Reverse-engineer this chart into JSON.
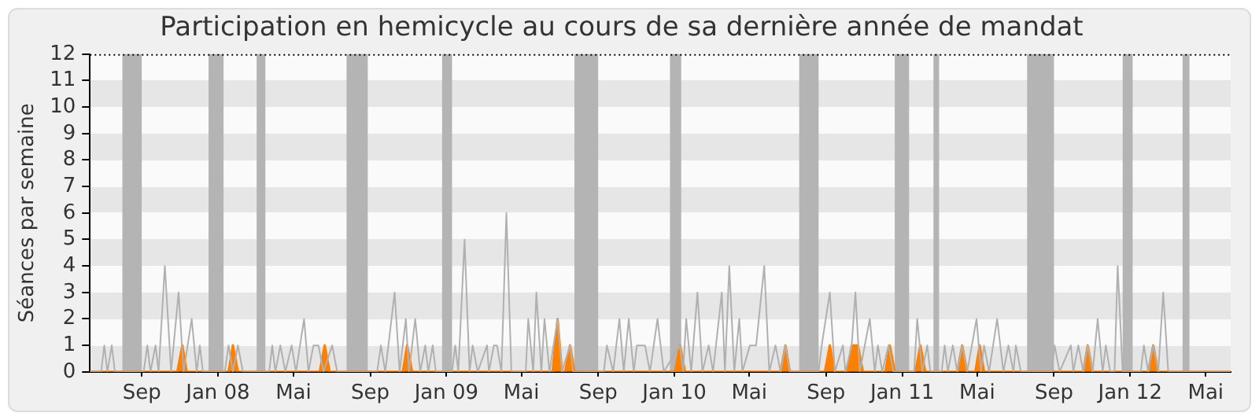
{
  "chart_data": {
    "type": "line",
    "title": "Participation en hemicycle au cours de sa dernière année de mandat",
    "ylabel": "Séances par semaine",
    "xlim": [
      "2007-06-10",
      "2012-06-10"
    ],
    "ylim": [
      0,
      12
    ],
    "yticks": [
      0,
      1,
      2,
      3,
      4,
      5,
      6,
      7,
      8,
      9,
      10,
      11,
      12
    ],
    "xticks": [
      {
        "value": "2007-09-01",
        "label": "Sep"
      },
      {
        "value": "2008-01-01",
        "label": "Jan 08"
      },
      {
        "value": "2008-05-01",
        "label": "Mai"
      },
      {
        "value": "2008-09-01",
        "label": "Sep"
      },
      {
        "value": "2009-01-01",
        "label": "Jan 09"
      },
      {
        "value": "2009-05-01",
        "label": "Mai"
      },
      {
        "value": "2009-09-01",
        "label": "Sep"
      },
      {
        "value": "2010-01-01",
        "label": "Jan 10"
      },
      {
        "value": "2010-05-01",
        "label": "Mai"
      },
      {
        "value": "2010-09-01",
        "label": "Sep"
      },
      {
        "value": "2011-01-01",
        "label": "Jan 11"
      },
      {
        "value": "2011-05-01",
        "label": "Mai"
      },
      {
        "value": "2011-09-01",
        "label": "Sep"
      },
      {
        "value": "2012-01-01",
        "label": "Jan 12"
      },
      {
        "value": "2012-05-01",
        "label": "Mai"
      }
    ],
    "legend": false,
    "marker": "none",
    "bands": [
      {
        "axis": "x",
        "from": "2007-08-01",
        "to": "2007-09-01",
        "color": "#b4b4b4"
      },
      {
        "axis": "x",
        "from": "2007-12-17",
        "to": "2008-01-10",
        "color": "#b4b4b4"
      },
      {
        "axis": "x",
        "from": "2008-03-03",
        "to": "2008-03-17",
        "color": "#b4b4b4"
      },
      {
        "axis": "x",
        "from": "2008-07-25",
        "to": "2008-08-28",
        "color": "#b4b4b4"
      },
      {
        "axis": "x",
        "from": "2008-12-25",
        "to": "2009-01-10",
        "color": "#b4b4b4"
      },
      {
        "axis": "x",
        "from": "2009-07-25",
        "to": "2009-09-01",
        "color": "#b4b4b4"
      },
      {
        "axis": "x",
        "from": "2009-12-25",
        "to": "2010-01-12",
        "color": "#b4b4b4"
      },
      {
        "axis": "x",
        "from": "2010-07-20",
        "to": "2010-08-20",
        "color": "#b4b4b4"
      },
      {
        "axis": "x",
        "from": "2010-12-20",
        "to": "2011-01-12",
        "color": "#b4b4b4"
      },
      {
        "axis": "x",
        "from": "2011-02-20",
        "to": "2011-03-01",
        "color": "#b4b4b4"
      },
      {
        "axis": "x",
        "from": "2011-07-20",
        "to": "2011-09-01",
        "color": "#b4b4b4"
      },
      {
        "axis": "x",
        "from": "2011-12-20",
        "to": "2012-01-05",
        "color": "#b4b4b4"
      },
      {
        "axis": "x",
        "from": "2012-03-25",
        "to": "2012-04-05",
        "color": "#b4b4b4"
      }
    ],
    "series": [
      {
        "color": "#b0b0b0",
        "x": [
          "2007-06-10",
          "2007-06-28",
          "2007-07-03",
          "2007-07-08",
          "2007-07-15",
          "2007-07-20",
          "2007-09-04",
          "2007-09-10",
          "2007-09-15",
          "2007-09-23",
          "2007-09-28",
          "2007-10-08",
          "2007-10-18",
          "2007-10-30",
          "2007-11-07",
          "2007-11-20",
          "2007-11-28",
          "2007-12-03",
          "2007-12-08",
          "2008-01-12",
          "2008-01-18",
          "2008-01-25",
          "2008-02-02",
          "2008-02-10",
          "2008-03-23",
          "2008-03-28",
          "2008-04-02",
          "2008-04-10",
          "2008-04-18",
          "2008-04-28",
          "2008-05-05",
          "2008-05-18",
          "2008-05-25",
          "2008-06-02",
          "2008-06-10",
          "2008-06-18",
          "2008-07-02",
          "2008-07-10",
          "2008-09-12",
          "2008-09-18",
          "2008-09-25",
          "2008-10-10",
          "2008-10-18",
          "2008-10-28",
          "2008-11-02",
          "2008-11-12",
          "2008-11-20",
          "2008-11-28",
          "2008-12-03",
          "2008-12-10",
          "2008-12-15",
          "2009-01-10",
          "2009-01-15",
          "2009-01-20",
          "2009-01-30",
          "2009-02-07",
          "2009-02-12",
          "2009-02-20",
          "2009-03-07",
          "2009-03-10",
          "2009-03-18",
          "2009-03-23",
          "2009-03-30",
          "2009-04-07",
          "2009-04-15",
          "2009-05-08",
          "2009-05-12",
          "2009-05-20",
          "2009-05-25",
          "2009-06-02",
          "2009-06-07",
          "2009-06-15",
          "2009-06-28",
          "2009-07-05",
          "2009-07-18",
          "2009-07-23",
          "2009-09-10",
          "2009-09-15",
          "2009-09-25",
          "2009-10-05",
          "2009-10-12",
          "2009-10-20",
          "2009-10-28",
          "2009-11-02",
          "2009-11-15",
          "2009-11-23",
          "2009-12-05",
          "2009-12-15",
          "2010-01-10",
          "2010-01-15",
          "2010-01-20",
          "2010-01-28",
          "2010-02-07",
          "2010-02-15",
          "2010-02-25",
          "2010-03-04",
          "2010-03-18",
          "2010-03-23",
          "2010-03-30",
          "2010-04-07",
          "2010-04-15",
          "2010-04-20",
          "2010-05-02",
          "2010-05-12",
          "2010-05-25",
          "2010-06-02",
          "2010-06-12",
          "2010-06-20",
          "2010-06-28",
          "2010-07-05",
          "2010-08-20",
          "2010-08-25",
          "2010-09-07",
          "2010-09-15",
          "2010-09-28",
          "2010-10-02",
          "2010-10-12",
          "2010-10-18",
          "2010-10-25",
          "2010-11-10",
          "2010-11-18",
          "2010-11-23",
          "2010-11-30",
          "2010-12-10",
          "2010-12-18",
          "2011-01-20",
          "2011-01-25",
          "2011-02-02",
          "2011-02-10",
          "2011-02-15",
          "2011-03-05",
          "2011-03-10",
          "2011-03-15",
          "2011-03-23",
          "2011-03-30",
          "2011-04-07",
          "2011-04-15",
          "2011-04-30",
          "2011-05-07",
          "2011-05-12",
          "2011-05-20",
          "2011-06-02",
          "2011-06-12",
          "2011-06-20",
          "2011-06-28",
          "2011-07-02",
          "2011-07-10",
          "2011-08-28",
          "2011-09-02",
          "2011-09-10",
          "2011-09-28",
          "2011-10-02",
          "2011-10-10",
          "2011-10-18",
          "2011-10-25",
          "2011-11-02",
          "2011-11-10",
          "2011-11-18",
          "2011-11-23",
          "2011-11-30",
          "2011-12-07",
          "2011-12-12",
          "2011-12-20",
          "2012-01-18",
          "2012-01-23",
          "2012-01-30",
          "2012-02-07",
          "2012-02-15",
          "2012-02-23",
          "2012-03-02",
          "2012-06-10"
        ],
        "values": [
          0,
          0,
          1,
          0,
          1,
          0,
          0,
          1,
          0,
          1,
          0,
          4,
          0,
          3,
          0,
          2,
          0,
          1,
          0,
          0,
          1,
          0,
          1,
          0,
          0,
          1,
          0,
          1,
          0,
          1,
          0,
          2,
          0,
          1,
          1,
          0,
          1,
          0,
          0,
          1,
          0,
          3,
          0,
          2,
          0,
          2,
          0,
          1,
          0,
          1,
          0,
          0,
          1,
          0,
          5,
          0,
          1,
          0,
          1,
          0,
          1,
          1,
          0,
          6,
          0,
          0,
          2,
          0,
          3,
          0,
          2,
          0,
          2,
          0,
          1,
          0,
          0,
          1,
          0,
          2,
          0,
          2,
          0,
          1,
          1,
          0,
          2,
          0,
          1,
          0,
          2,
          0,
          3,
          0,
          1,
          0,
          3,
          0,
          4,
          0,
          2,
          0,
          1,
          1,
          4,
          0,
          1,
          0,
          1,
          0,
          0,
          1,
          3,
          0,
          1,
          0,
          1,
          3,
          0,
          2,
          0,
          1,
          0,
          1,
          0,
          0,
          2,
          0,
          1,
          0,
          0,
          1,
          0,
          1,
          0,
          1,
          0,
          2,
          0,
          1,
          0,
          2,
          0,
          1,
          0,
          1,
          0,
          0,
          1,
          0,
          1,
          0,
          1,
          0,
          1,
          0,
          2,
          0,
          1,
          0,
          0,
          4,
          0,
          0,
          1,
          0,
          1,
          0,
          3,
          0,
          0
        ]
      },
      {
        "type": "area",
        "color": "#ff8000",
        "x": [
          "2007-06-10",
          "2007-10-28",
          "2007-11-05",
          "2007-11-12",
          "2008-01-18",
          "2008-01-25",
          "2008-02-02",
          "2008-06-12",
          "2008-06-20",
          "2008-06-28",
          "2008-10-23",
          "2008-10-30",
          "2008-11-07",
          "2009-06-20",
          "2009-06-28",
          "2009-07-05",
          "2009-07-10",
          "2009-07-18",
          "2009-07-25",
          "2010-01-02",
          "2010-01-10",
          "2010-01-18",
          "2010-06-20",
          "2010-06-28",
          "2010-07-05",
          "2010-08-30",
          "2010-09-07",
          "2010-09-15",
          "2010-10-05",
          "2010-10-12",
          "2010-10-22",
          "2010-10-30",
          "2010-12-05",
          "2010-12-12",
          "2010-12-20",
          "2011-01-22",
          "2011-01-30",
          "2011-02-07",
          "2011-03-30",
          "2011-04-07",
          "2011-04-15",
          "2011-04-28",
          "2011-05-05",
          "2011-05-12",
          "2011-10-18",
          "2011-10-25",
          "2011-11-02",
          "2012-01-30",
          "2012-02-07",
          "2012-02-15",
          "2012-06-10"
        ],
        "values": [
          0,
          0,
          1,
          0,
          0,
          1,
          0,
          0,
          1,
          0,
          0,
          1,
          0,
          0,
          2,
          0,
          0,
          1,
          0,
          0,
          1,
          0,
          0,
          1,
          0,
          0,
          1,
          0,
          0,
          1,
          1,
          0,
          0,
          1,
          0,
          0,
          1,
          0,
          0,
          1,
          0,
          0,
          1,
          0,
          0,
          1,
          0,
          0,
          1,
          0,
          0
        ]
      }
    ]
  }
}
